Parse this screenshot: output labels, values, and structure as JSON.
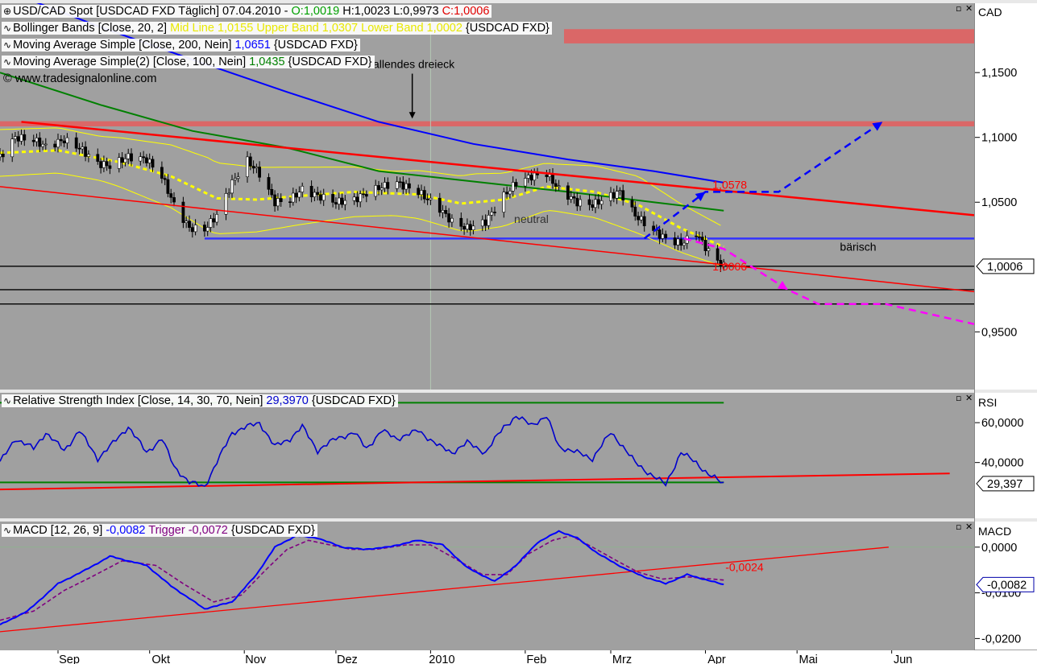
{
  "colors": {
    "background": "#a0a0a0",
    "axis_background": "#ffffff",
    "price_up": "#ffffff",
    "price_down": "#000000",
    "bollinger": "#ffff00",
    "ma200": "#0000ff",
    "ma100": "#008000",
    "trendline": "#ff0000",
    "support": "#3333ff",
    "resistance_zone": "#e06060",
    "scenario_bull": "#0000ff",
    "scenario_bear": "#ff00ff",
    "rsi": "#0000cc",
    "macd": "#0000ff",
    "trigger": "#800080"
  },
  "legend": {
    "main": {
      "symbol": "USD/CAD Spot [USDCAD FXD  Täglich] 07.04.2010 - ",
      "open": "O:1,0019",
      "hl": " H:1,0023 L:0,9973 ",
      "close": "C:1,0006"
    },
    "bollinger": {
      "name": "Bollinger Bands [Close, 20, 2] ",
      "values": "Mid Line 1,0155 Upper Band 1,0307 Lower Band 1,0002",
      "instrument": " {USDCAD FXD}"
    },
    "ma200": {
      "name": "Moving Average Simple [Close, 200, Nein] ",
      "value": "1,0651",
      "instrument": " {USDCAD FXD}"
    },
    "ma100": {
      "name": "Moving Average Simple(2) [Close, 100, Nein] ",
      "value": "1,0435",
      "instrument": " {USDCAD FXD}"
    },
    "copyright": "© www.tradesignalonline.com",
    "rsi": {
      "name": "Relative Strength Index [Close, 14, 30, 70, Nein] ",
      "value": "29,3970",
      "instrument": " {USDCAD FXD}"
    },
    "macd": {
      "name": "MACD [12, 26, 9] ",
      "value": "-0,0082",
      "trigger_label": " Trigger ",
      "trigger_value": "-0,0072",
      "instrument": " {USDCAD FXD}"
    }
  },
  "window_controls": {
    "minimize": "▫",
    "close": "✕"
  },
  "chart_data": [
    {
      "type": "candlestick",
      "title": "USD/CAD Spot [USDCAD FXD  Täglich] 07.04.2010",
      "axis_label": "CAD",
      "x_tick_labels": [
        "Sep",
        "Okt",
        "Nov",
        "Dez",
        "2010",
        "Feb",
        "Mrz",
        "Apr",
        "Mai",
        "Jun"
      ],
      "x_tick_dates": [
        "2009-09-01",
        "2009-10-01",
        "2009-11-01",
        "2009-12-01",
        "2010-01-01",
        "2010-02-01",
        "2010-03-01",
        "2010-04-01",
        "2010-05-01",
        "2010-06-01"
      ],
      "x_range": [
        "2009-08-13",
        "2010-06-28"
      ],
      "ylim": [
        0.9055,
        1.2035
      ],
      "y_ticks": [
        "1,1500",
        "1,1000",
        "1,0500",
        "0,9500"
      ],
      "y_tick_values": [
        1.15,
        1.1,
        1.05,
        0.95
      ],
      "last_price_label": "1,0006",
      "last_price": 1.0006,
      "close_series": [
        [
          "2009-08-13",
          1.085
        ],
        [
          "2009-08-18",
          1.1
        ],
        [
          "2009-08-24",
          1.098
        ],
        [
          "2009-08-28",
          1.093
        ],
        [
          "2009-09-03",
          1.098
        ],
        [
          "2009-09-08",
          1.092
        ],
        [
          "2009-09-14",
          1.08
        ],
        [
          "2009-09-18",
          1.078
        ],
        [
          "2009-09-24",
          1.085
        ],
        [
          "2009-09-30",
          1.083
        ],
        [
          "2009-10-05",
          1.07
        ],
        [
          "2009-10-09",
          1.048
        ],
        [
          "2009-10-14",
          1.03
        ],
        [
          "2009-10-19",
          1.029
        ],
        [
          "2009-10-23",
          1.04
        ],
        [
          "2009-10-28",
          1.065
        ],
        [
          "2009-11-02",
          1.082
        ],
        [
          "2009-11-06",
          1.072
        ],
        [
          "2009-11-11",
          1.05
        ],
        [
          "2009-11-16",
          1.052
        ],
        [
          "2009-11-20",
          1.06
        ],
        [
          "2009-11-25",
          1.055
        ],
        [
          "2009-12-01",
          1.05
        ],
        [
          "2009-12-07",
          1.052
        ],
        [
          "2009-12-11",
          1.057
        ],
        [
          "2009-12-16",
          1.062
        ],
        [
          "2009-12-21",
          1.065
        ],
        [
          "2009-12-28",
          1.058
        ],
        [
          "2010-01-04",
          1.045
        ],
        [
          "2010-01-08",
          1.035
        ],
        [
          "2010-01-13",
          1.03
        ],
        [
          "2010-01-19",
          1.035
        ],
        [
          "2010-01-25",
          1.055
        ],
        [
          "2010-01-29",
          1.065
        ],
        [
          "2010-02-03",
          1.07
        ],
        [
          "2010-02-08",
          1.072
        ],
        [
          "2010-02-12",
          1.06
        ],
        [
          "2010-02-18",
          1.05
        ],
        [
          "2010-02-23",
          1.048
        ],
        [
          "2010-03-01",
          1.055
        ],
        [
          "2010-03-04",
          1.058
        ],
        [
          "2010-03-09",
          1.04
        ],
        [
          "2010-03-15",
          1.028
        ],
        [
          "2010-03-19",
          1.022
        ],
        [
          "2010-03-24",
          1.018
        ],
        [
          "2010-03-29",
          1.026
        ],
        [
          "2010-04-02",
          1.012
        ],
        [
          "2010-04-07",
          1.0006
        ]
      ],
      "bollinger_mid_series": [
        [
          "2009-08-13",
          1.088
        ],
        [
          "2009-09-01",
          1.09
        ],
        [
          "2009-09-21",
          1.081
        ],
        [
          "2009-10-08",
          1.07
        ],
        [
          "2009-10-23",
          1.053
        ],
        [
          "2009-11-05",
          1.052
        ],
        [
          "2009-11-20",
          1.055
        ],
        [
          "2009-12-07",
          1.058
        ],
        [
          "2009-12-28",
          1.056
        ],
        [
          "2010-01-11",
          1.049
        ],
        [
          "2010-01-25",
          1.052
        ],
        [
          "2010-02-08",
          1.062
        ],
        [
          "2010-02-24",
          1.058
        ],
        [
          "2010-03-10",
          1.048
        ],
        [
          "2010-03-24",
          1.03
        ],
        [
          "2010-04-07",
          1.0155
        ]
      ],
      "bollinger_upper_band": 1.0307,
      "bollinger_lower_band": 1.0002,
      "ma200_series": [
        [
          "2009-08-13",
          1.215
        ],
        [
          "2009-09-15",
          1.185
        ],
        [
          "2009-10-15",
          1.16
        ],
        [
          "2009-11-15",
          1.135
        ],
        [
          "2009-12-15",
          1.112
        ],
        [
          "2010-01-15",
          1.095
        ],
        [
          "2010-02-15",
          1.083
        ],
        [
          "2010-03-15",
          1.074
        ],
        [
          "2010-04-07",
          1.0651
        ]
      ],
      "ma100_series": [
        [
          "2009-08-13",
          1.15
        ],
        [
          "2009-09-15",
          1.125
        ],
        [
          "2009-10-15",
          1.105
        ],
        [
          "2009-11-15",
          1.092
        ],
        [
          "2009-12-15",
          1.074
        ],
        [
          "2010-01-15",
          1.066
        ],
        [
          "2010-02-15",
          1.058
        ],
        [
          "2010-03-15",
          1.05
        ],
        [
          "2010-04-07",
          1.0435
        ]
      ],
      "resistance_zones": [
        {
          "from": 1.1725,
          "to": 1.1835
        },
        {
          "from": 1.1085,
          "to": 1.1125
        }
      ],
      "horizontal_lines": [
        1.0006,
        0.9825,
        0.9715
      ],
      "support_line": {
        "y": 1.022,
        "from": "2009-10-19",
        "to": "2010-06-28"
      },
      "trendlines": [
        {
          "from": [
            "2009-08-20",
            1.112
          ],
          "to": [
            "2010-06-28",
            1.04
          ],
          "width": 2.5
        },
        {
          "from": [
            "2009-08-13",
            1.062
          ],
          "to": [
            "2010-06-28",
            0.981
          ],
          "width": 1.5
        }
      ],
      "scenario_bull": [
        [
          "2010-03-12",
          1.022
        ],
        [
          "2010-04-01",
          1.058
        ],
        [
          "2010-04-25",
          1.058
        ],
        [
          "2010-05-29",
          1.112
        ]
      ],
      "scenario_bear": [
        [
          "2010-03-25",
          1.022
        ],
        [
          "2010-04-07",
          1.014
        ],
        [
          "2010-04-28",
          0.9825
        ],
        [
          "2010-05-08",
          0.9715
        ],
        [
          "2010-05-30",
          0.9715
        ],
        [
          "2010-06-28",
          0.956
        ]
      ],
      "annotations": [
        {
          "text": "fallendes dreieck",
          "date": "2009-12-26",
          "y": 1.1535
        },
        {
          "text": "neutral",
          "date": "2010-02-03",
          "y": 1.034
        },
        {
          "text": "bärisch",
          "date": "2010-05-21",
          "y": 1.0125
        },
        {
          "text": "1,0578",
          "date": "2010-04-02",
          "y": 1.058
        },
        {
          "text": "1,0006",
          "date": "2010-04-02",
          "y": 1.0006
        }
      ],
      "cursor_date": "2010-01-01"
    },
    {
      "type": "line",
      "title": "Relative Strength Index [Close, 14, 30, 70, Nein]",
      "axis_label": "RSI",
      "ylim": [
        12,
        75
      ],
      "y_ticks": [
        "60,0000",
        "40,0000"
      ],
      "y_tick_values": [
        60,
        40
      ],
      "last_value_label": "29,397",
      "last_value": 29.397,
      "levels": [
        70,
        30
      ],
      "level_span": [
        "2009-08-13",
        "2010-04-07"
      ],
      "trendline": {
        "from": [
          "2009-08-13",
          26.5
        ],
        "to": [
          "2010-06-20",
          34.5
        ]
      },
      "series": [
        [
          "2009-08-13",
          40
        ],
        [
          "2009-08-18",
          52
        ],
        [
          "2009-08-24",
          47
        ],
        [
          "2009-08-28",
          55
        ],
        [
          "2009-09-03",
          46
        ],
        [
          "2009-09-08",
          56
        ],
        [
          "2009-09-14",
          42
        ],
        [
          "2009-09-18",
          48
        ],
        [
          "2009-09-24",
          58
        ],
        [
          "2009-09-30",
          45
        ],
        [
          "2009-10-05",
          52
        ],
        [
          "2009-10-09",
          38
        ],
        [
          "2009-10-14",
          30
        ],
        [
          "2009-10-19",
          28
        ],
        [
          "2009-10-23",
          40
        ],
        [
          "2009-10-28",
          55
        ],
        [
          "2009-11-02",
          58
        ],
        [
          "2009-11-06",
          60
        ],
        [
          "2009-11-11",
          48
        ],
        [
          "2009-11-16",
          52
        ],
        [
          "2009-11-20",
          58
        ],
        [
          "2009-11-25",
          46
        ],
        [
          "2009-12-01",
          52
        ],
        [
          "2009-12-07",
          55
        ],
        [
          "2009-12-11",
          47
        ],
        [
          "2009-12-16",
          56
        ],
        [
          "2009-12-21",
          52
        ],
        [
          "2009-12-28",
          56
        ],
        [
          "2010-01-04",
          48
        ],
        [
          "2010-01-08",
          45
        ],
        [
          "2010-01-13",
          50
        ],
        [
          "2010-01-19",
          45
        ],
        [
          "2010-01-25",
          58
        ],
        [
          "2010-01-29",
          63
        ],
        [
          "2010-02-03",
          59
        ],
        [
          "2010-02-08",
          63
        ],
        [
          "2010-02-12",
          48
        ],
        [
          "2010-02-18",
          45
        ],
        [
          "2010-02-23",
          42
        ],
        [
          "2010-03-01",
          55
        ],
        [
          "2010-03-04",
          50
        ],
        [
          "2010-03-09",
          40
        ],
        [
          "2010-03-15",
          33
        ],
        [
          "2010-03-19",
          29
        ],
        [
          "2010-03-24",
          45
        ],
        [
          "2010-03-29",
          40
        ],
        [
          "2010-04-02",
          34
        ],
        [
          "2010-04-07",
          29.397
        ]
      ]
    },
    {
      "type": "line",
      "title": "MACD [12, 26, 9]",
      "axis_label": "MACD",
      "ylim": [
        -0.0224,
        0.0056
      ],
      "y_ticks": [
        "0,0000",
        "-0,0100",
        "-0,0200"
      ],
      "y_tick_values": [
        0,
        -0.01,
        -0.02
      ],
      "last_value_label": "-0,0082",
      "trigger_value_label": "-0,0072",
      "zero_line": 0,
      "trendline": {
        "from": [
          "2009-08-13",
          -0.0185
        ],
        "to": [
          "2010-05-31",
          0.0
        ]
      },
      "annotation": {
        "text": "-0,0024",
        "date": "2010-04-07",
        "y": -0.0052
      },
      "series": [
        {
          "name": "MACD",
          "points": [
            [
              "2009-08-13",
              -0.017
            ],
            [
              "2009-08-22",
              -0.014
            ],
            [
              "2009-09-01",
              -0.008
            ],
            [
              "2009-09-10",
              -0.005
            ],
            [
              "2009-09-18",
              -0.002
            ],
            [
              "2009-09-30",
              -0.004
            ],
            [
              "2009-10-08",
              -0.0085
            ],
            [
              "2009-10-19",
              -0.0135
            ],
            [
              "2009-10-28",
              -0.012
            ],
            [
              "2009-11-05",
              -0.006
            ],
            [
              "2009-11-11",
              0.0
            ],
            [
              "2009-11-18",
              0.0025
            ],
            [
              "2009-11-25",
              0.002
            ],
            [
              "2009-12-03",
              0.0
            ],
            [
              "2009-12-10",
              -0.0005
            ],
            [
              "2009-12-18",
              0.0
            ],
            [
              "2009-12-28",
              0.0015
            ],
            [
              "2010-01-05",
              0.0005
            ],
            [
              "2010-01-13",
              -0.0045
            ],
            [
              "2010-01-22",
              -0.0075
            ],
            [
              "2010-01-29",
              -0.004
            ],
            [
              "2010-02-05",
              0.001
            ],
            [
              "2010-02-12",
              0.0035
            ],
            [
              "2010-02-18",
              0.002
            ],
            [
              "2010-02-25",
              -0.0015
            ],
            [
              "2010-03-05",
              -0.0045
            ],
            [
              "2010-03-12",
              -0.0065
            ],
            [
              "2010-03-19",
              -0.008
            ],
            [
              "2010-03-26",
              -0.006
            ],
            [
              "2010-04-07",
              -0.0082
            ]
          ]
        },
        {
          "name": "Trigger",
          "points": [
            [
              "2009-08-13",
              -0.016
            ],
            [
              "2009-08-24",
              -0.014
            ],
            [
              "2009-09-03",
              -0.0095
            ],
            [
              "2009-09-12",
              -0.0065
            ],
            [
              "2009-09-22",
              -0.003
            ],
            [
              "2009-10-03",
              -0.004
            ],
            [
              "2009-10-12",
              -0.008
            ],
            [
              "2009-10-22",
              -0.012
            ],
            [
              "2009-10-31",
              -0.0105
            ],
            [
              "2009-11-08",
              -0.005
            ],
            [
              "2009-11-15",
              -0.0005
            ],
            [
              "2009-11-22",
              0.0015
            ],
            [
              "2009-11-29",
              0.0005
            ],
            [
              "2009-12-06",
              -0.0005
            ],
            [
              "2009-12-14",
              -0.0005
            ],
            [
              "2009-12-24",
              0.0005
            ],
            [
              "2010-01-01",
              0.0005
            ],
            [
              "2010-01-09",
              -0.0025
            ],
            [
              "2010-01-18",
              -0.006
            ],
            [
              "2010-01-26",
              -0.006
            ],
            [
              "2010-02-02",
              -0.0015
            ],
            [
              "2010-02-10",
              0.0015
            ],
            [
              "2010-02-16",
              0.0025
            ],
            [
              "2010-02-23",
              0.0
            ],
            [
              "2010-03-03",
              -0.003
            ],
            [
              "2010-03-10",
              -0.0055
            ],
            [
              "2010-03-18",
              -0.007
            ],
            [
              "2010-03-26",
              -0.0065
            ],
            [
              "2010-04-07",
              -0.0072
            ]
          ]
        }
      ]
    }
  ]
}
